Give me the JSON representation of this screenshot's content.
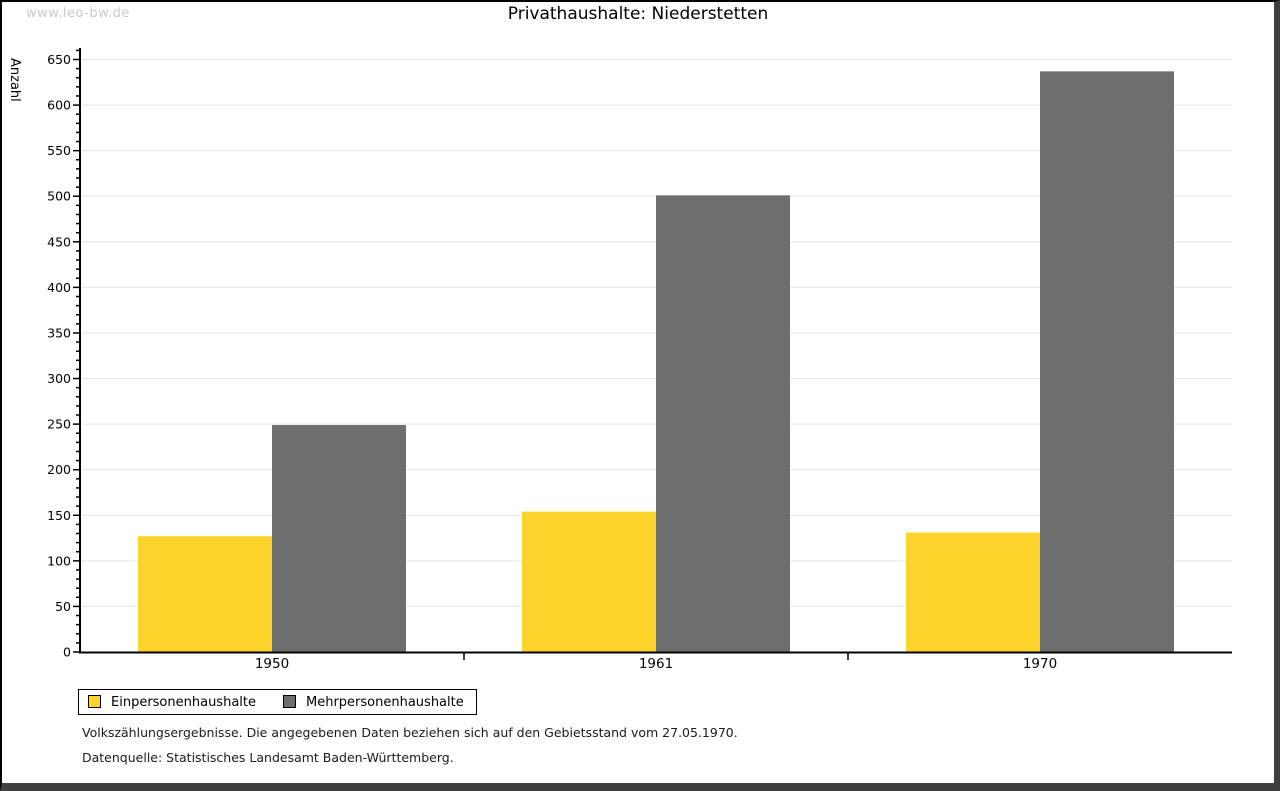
{
  "watermark": "www.leo-bw.de",
  "chart_data": {
    "type": "bar",
    "title": "Privathaushalte: Niederstetten",
    "ylabel": "Anzahl",
    "xlabel": "",
    "categories": [
      "1950",
      "1961",
      "1970"
    ],
    "series": [
      {
        "name": "Einpersonenhaushalte",
        "color": "#FCD32B",
        "values": [
          127,
          154,
          131
        ]
      },
      {
        "name": "Mehrpersonenhaushalte",
        "color": "#6E6E6E",
        "values": [
          249,
          501,
          637
        ]
      }
    ],
    "ylim": [
      0,
      650
    ],
    "ytick_major": 50,
    "ytick_minor": 10,
    "grid": true,
    "legend_position": "bottom-left",
    "gridline_color": "#e4e4e4",
    "axis_color": "#000000"
  },
  "footnotes": [
    "Volkszählungsergebnisse. Die angegebenen Daten beziehen sich auf den Gebietsstand vom 27.05.1970.",
    "Datenquelle: Statistisches Landesamt Baden-Württemberg."
  ]
}
